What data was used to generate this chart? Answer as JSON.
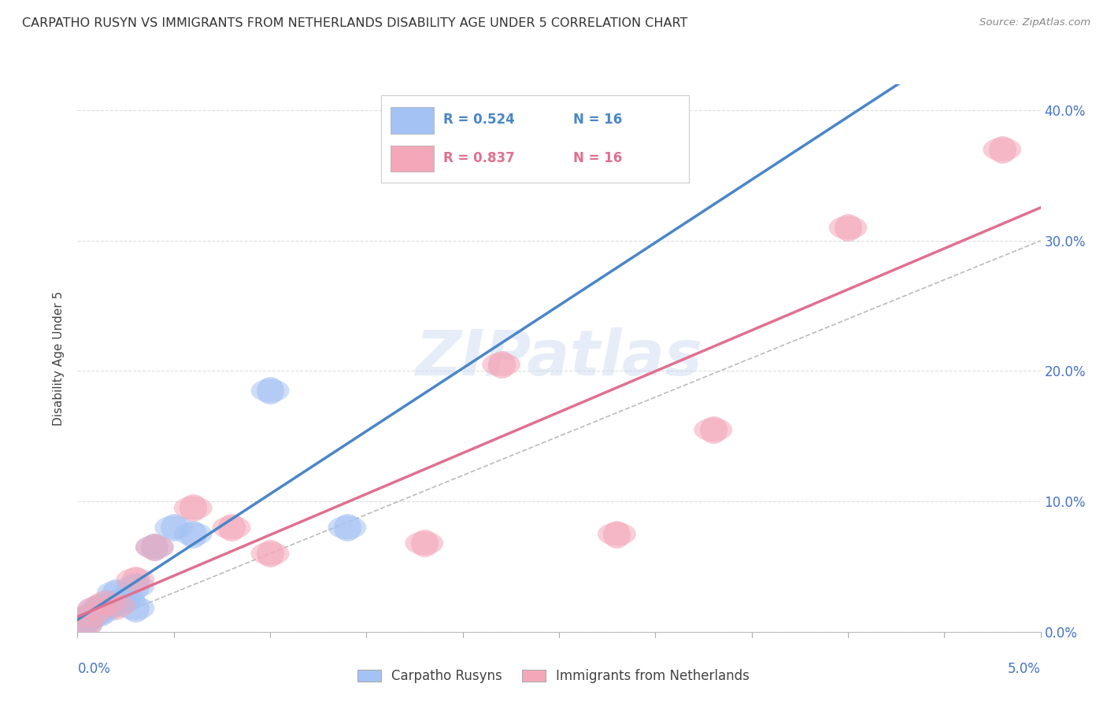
{
  "title": "CARPATHO RUSYN VS IMMIGRANTS FROM NETHERLANDS DISABILITY AGE UNDER 5 CORRELATION CHART",
  "source": "Source: ZipAtlas.com",
  "ylabel": "Disability Age Under 5",
  "ylabel_right_ticks": [
    "0.0%",
    "10.0%",
    "20.0%",
    "30.0%",
    "40.0%"
  ],
  "ylabel_right_vals": [
    0.0,
    0.1,
    0.2,
    0.3,
    0.4
  ],
  "legend1_label": "Carpatho Rusyns",
  "legend2_label": "Immigrants from Netherlands",
  "legend1_R": "R = 0.524",
  "legend1_N": "N = 16",
  "legend2_R": "R = 0.837",
  "legend2_N": "N = 16",
  "color_blue": "#a4c2f4",
  "color_pink": "#f4a7b9",
  "color_blue_line": "#4a86c8",
  "color_pink_line": "#e07090",
  "color_dashed": "#bbbbbb",
  "watermark": "ZIPatlas",
  "blue_points_x": [
    0.0003,
    0.0005,
    0.0007,
    0.001,
    0.0012,
    0.0015,
    0.002,
    0.002,
    0.0025,
    0.003,
    0.003,
    0.004,
    0.005,
    0.006,
    0.01,
    0.014
  ],
  "blue_points_y": [
    0.005,
    0.01,
    0.012,
    0.018,
    0.015,
    0.02,
    0.022,
    0.03,
    0.025,
    0.018,
    0.035,
    0.065,
    0.08,
    0.075,
    0.185,
    0.08
  ],
  "pink_points_x": [
    0.0003,
    0.0006,
    0.001,
    0.0015,
    0.002,
    0.003,
    0.004,
    0.006,
    0.008,
    0.01,
    0.018,
    0.022,
    0.028,
    0.033,
    0.04,
    0.048
  ],
  "pink_points_y": [
    0.005,
    0.012,
    0.018,
    0.022,
    0.02,
    0.04,
    0.065,
    0.095,
    0.08,
    0.06,
    0.068,
    0.205,
    0.075,
    0.155,
    0.31,
    0.37
  ],
  "xlim": [
    0.0,
    0.05
  ],
  "ylim": [
    0.0,
    0.42
  ],
  "x_tick_vals": [
    0.0,
    0.005,
    0.01,
    0.015,
    0.02,
    0.025,
    0.03,
    0.035,
    0.04,
    0.045,
    0.05
  ],
  "dashed_line": [
    [
      0.0,
      0.05
    ],
    [
      0.0,
      0.3
    ]
  ]
}
